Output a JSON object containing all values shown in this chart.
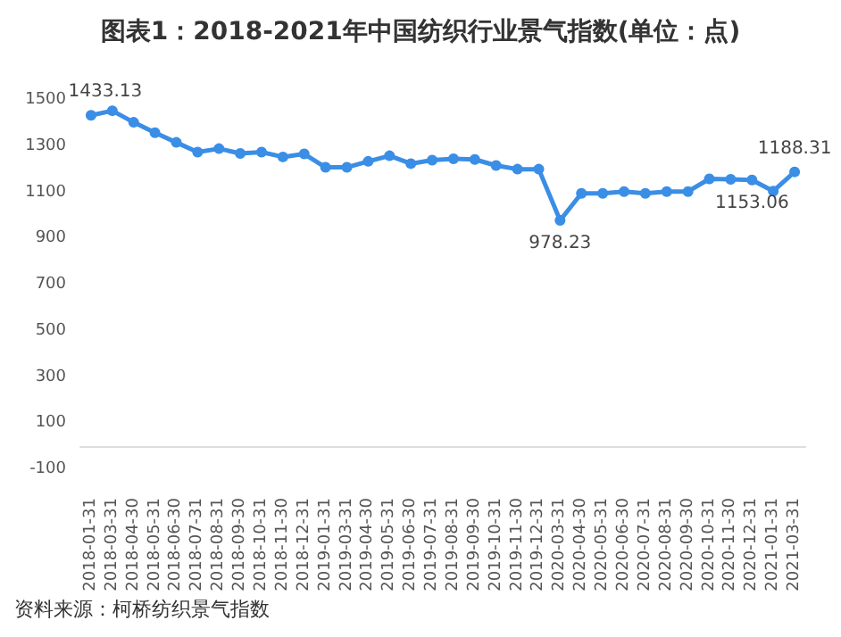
{
  "chart_data": {
    "type": "line",
    "title": "图表1：2018-2021年中国纺织行业景气指数(单位：点)",
    "categories": [
      "2018-01-31",
      "2018-03-31",
      "2018-04-30",
      "2018-05-31",
      "2018-06-30",
      "2018-07-31",
      "2018-08-31",
      "2018-09-30",
      "2018-10-31",
      "2018-11-30",
      "2018-12-31",
      "2019-01-31",
      "2019-03-31",
      "2019-04-30",
      "2019-05-31",
      "2019-06-30",
      "2019-07-31",
      "2019-08-31",
      "2019-09-30",
      "2019-10-31",
      "2019-11-30",
      "2019-12-31",
      "2020-03-31",
      "2020-04-30",
      "2020-05-31",
      "2020-06-30",
      "2020-07-31",
      "2020-08-31",
      "2020-09-30",
      "2020-10-31",
      "2020-11-30",
      "2020-12-31",
      "2021-01-31",
      "2021-03-31"
    ],
    "series": [
      {
        "color": "#3a8ee6",
        "values": [
          1433.13,
          1453,
          1403,
          1358,
          1316,
          1274,
          1289,
          1268,
          1274,
          1253,
          1266,
          1208,
          1208,
          1234,
          1258,
          1224,
          1239,
          1245,
          1242,
          1216,
          1200,
          1200,
          978.23,
          1095,
          1095,
          1103,
          1095,
          1103,
          1103,
          1158,
          1156,
          1153.06,
          1105,
          1188.31
        ],
        "value_labels": [
          "1433.13",
          null,
          null,
          null,
          null,
          null,
          null,
          null,
          null,
          null,
          null,
          null,
          null,
          null,
          null,
          null,
          null,
          null,
          null,
          null,
          null,
          null,
          "978.23",
          null,
          null,
          null,
          null,
          null,
          null,
          null,
          null,
          "1153.06",
          null,
          "1188.31"
        ]
      }
    ],
    "ylim": [
      -100,
      1500
    ],
    "yticks": [
      -100,
      100,
      300,
      500,
      700,
      900,
      1100,
      1300,
      1500
    ],
    "marker": "circle",
    "grid": false,
    "annotations": [
      "资料来源：柯桥纺织景气指数"
    ]
  }
}
